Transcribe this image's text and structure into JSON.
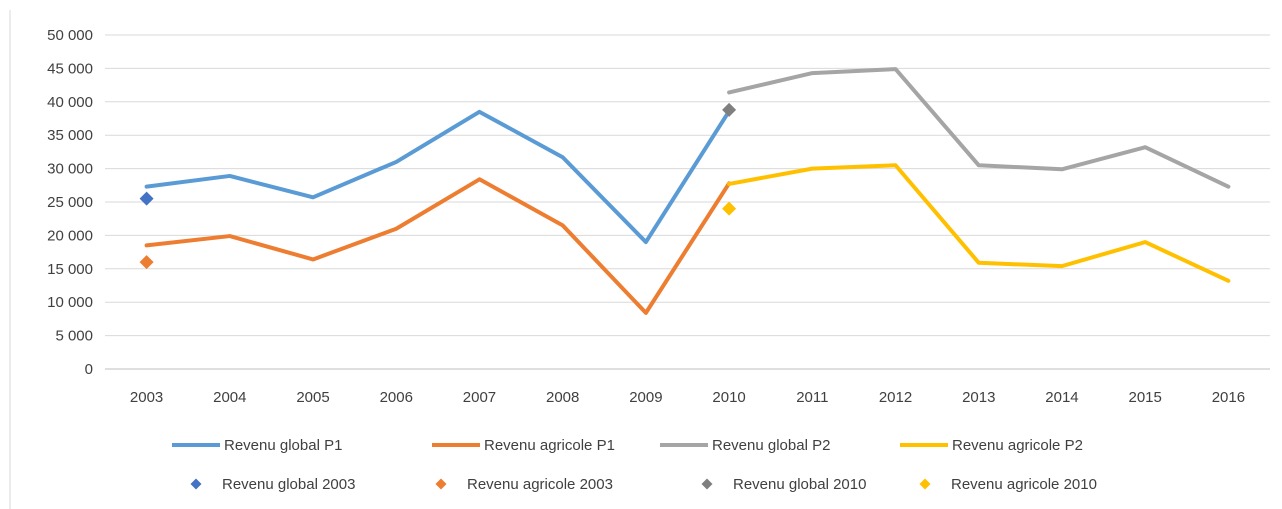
{
  "chart_data": {
    "type": "line",
    "title": "",
    "xlabel": "",
    "ylabel": "",
    "categories": [
      "2003",
      "2004",
      "2005",
      "2006",
      "2007",
      "2008",
      "2009",
      "2010",
      "2011",
      "2012",
      "2013",
      "2014",
      "2015",
      "2016"
    ],
    "ylim": [
      0,
      50000
    ],
    "yticks": [
      0,
      5000,
      10000,
      15000,
      20000,
      25000,
      30000,
      35000,
      40000,
      45000,
      50000
    ],
    "ytick_labels": [
      "0",
      "5 000",
      "10 000",
      "15 000",
      "20 000",
      "25 000",
      "30 000",
      "35 000",
      "40 000",
      "45 000",
      "50 000"
    ],
    "grid": true,
    "legend_position": "bottom",
    "series": [
      {
        "name": "Revenu global P1",
        "kind": "line",
        "color": "#5B9BD5",
        "points": [
          [
            "2003",
            27300
          ],
          [
            "2004",
            28900
          ],
          [
            "2005",
            25700
          ],
          [
            "2006",
            31000
          ],
          [
            "2007",
            38500
          ],
          [
            "2008",
            31700
          ],
          [
            "2009",
            19000
          ],
          [
            "2010",
            38600
          ]
        ]
      },
      {
        "name": "Revenu agricole P1",
        "kind": "line",
        "color": "#ED7D31",
        "points": [
          [
            "2003",
            18500
          ],
          [
            "2004",
            19900
          ],
          [
            "2005",
            16400
          ],
          [
            "2006",
            21000
          ],
          [
            "2007",
            28400
          ],
          [
            "2008",
            21500
          ],
          [
            "2009",
            8400
          ],
          [
            "2010",
            27800
          ]
        ]
      },
      {
        "name": "Revenu global P2",
        "kind": "line",
        "color": "#A5A5A5",
        "points": [
          [
            "2010",
            41400
          ],
          [
            "2011",
            44300
          ],
          [
            "2012",
            44900
          ],
          [
            "2013",
            30500
          ],
          [
            "2014",
            29900
          ],
          [
            "2015",
            33200
          ],
          [
            "2016",
            27300
          ]
        ]
      },
      {
        "name": "Revenu agricole P2",
        "kind": "line",
        "color": "#FFC000",
        "points": [
          [
            "2010",
            27700
          ],
          [
            "2011",
            30000
          ],
          [
            "2012",
            30500
          ],
          [
            "2013",
            15900
          ],
          [
            "2014",
            15400
          ],
          [
            "2015",
            19000
          ],
          [
            "2016",
            13200
          ]
        ]
      },
      {
        "name": "Revenu global 2003",
        "kind": "marker",
        "color": "#4472C4",
        "points": [
          [
            "2003",
            25500
          ]
        ]
      },
      {
        "name": "Revenu agricole 2003",
        "kind": "marker",
        "color": "#ED7D31",
        "points": [
          [
            "2003",
            16000
          ]
        ]
      },
      {
        "name": "Revenu global 2010",
        "kind": "marker",
        "color": "#7F7F7F",
        "points": [
          [
            "2010",
            38800
          ]
        ]
      },
      {
        "name": "Revenu agricole 2010",
        "kind": "marker",
        "color": "#FFC000",
        "points": [
          [
            "2010",
            24000
          ]
        ]
      }
    ]
  }
}
